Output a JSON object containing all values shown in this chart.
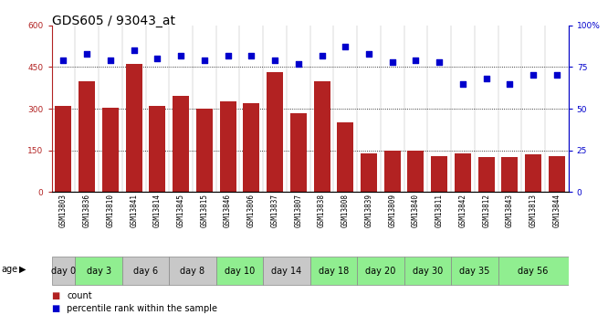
{
  "title": "GDS605 / 93043_at",
  "samples": [
    "GSM13803",
    "GSM13836",
    "GSM13810",
    "GSM13841",
    "GSM13814",
    "GSM13845",
    "GSM13815",
    "GSM13846",
    "GSM13806",
    "GSM13837",
    "GSM13807",
    "GSM13838",
    "GSM13808",
    "GSM13839",
    "GSM13809",
    "GSM13840",
    "GSM13811",
    "GSM13842",
    "GSM13812",
    "GSM13843",
    "GSM13813",
    "GSM13844"
  ],
  "bar_values": [
    310,
    400,
    305,
    460,
    310,
    345,
    300,
    325,
    320,
    430,
    285,
    400,
    250,
    140,
    150,
    150,
    130,
    140,
    125,
    125,
    135,
    130
  ],
  "percentile_values": [
    79,
    83,
    79,
    85,
    80,
    82,
    79,
    82,
    82,
    79,
    77,
    82,
    87,
    83,
    78,
    79,
    78,
    65,
    68,
    65,
    70,
    70
  ],
  "bar_color": "#b22222",
  "dot_color": "#0000cc",
  "left_ylim": [
    0,
    600
  ],
  "right_ylim": [
    0,
    100
  ],
  "left_yticks": [
    0,
    150,
    300,
    450,
    600
  ],
  "right_yticks": [
    0,
    25,
    50,
    75,
    100
  ],
  "right_yticklabels": [
    "0",
    "25",
    "50",
    "75",
    "100%"
  ],
  "left_yticklabels": [
    "0",
    "150",
    "300",
    "450",
    "600"
  ],
  "age_groups": [
    {
      "label": "day 0",
      "start": 0,
      "end": 1,
      "color": "#c8c8c8"
    },
    {
      "label": "day 3",
      "start": 1,
      "end": 3,
      "color": "#90ee90"
    },
    {
      "label": "day 6",
      "start": 3,
      "end": 5,
      "color": "#c8c8c8"
    },
    {
      "label": "day 8",
      "start": 5,
      "end": 7,
      "color": "#c8c8c8"
    },
    {
      "label": "day 10",
      "start": 7,
      "end": 9,
      "color": "#90ee90"
    },
    {
      "label": "day 14",
      "start": 9,
      "end": 11,
      "color": "#c8c8c8"
    },
    {
      "label": "day 18",
      "start": 11,
      "end": 13,
      "color": "#90ee90"
    },
    {
      "label": "day 20",
      "start": 13,
      "end": 15,
      "color": "#90ee90"
    },
    {
      "label": "day 30",
      "start": 15,
      "end": 17,
      "color": "#90ee90"
    },
    {
      "label": "day 35",
      "start": 17,
      "end": 19,
      "color": "#90ee90"
    },
    {
      "label": "day 56",
      "start": 19,
      "end": 22,
      "color": "#90ee90"
    }
  ],
  "background_color": "#ffffff",
  "legend_count_label": "count",
  "legend_pct_label": "percentile rank within the sample",
  "age_label": "age",
  "title_fontsize": 10,
  "tick_label_fontsize": 6.5,
  "sample_fontsize": 5.5,
  "age_group_fontsize": 7
}
